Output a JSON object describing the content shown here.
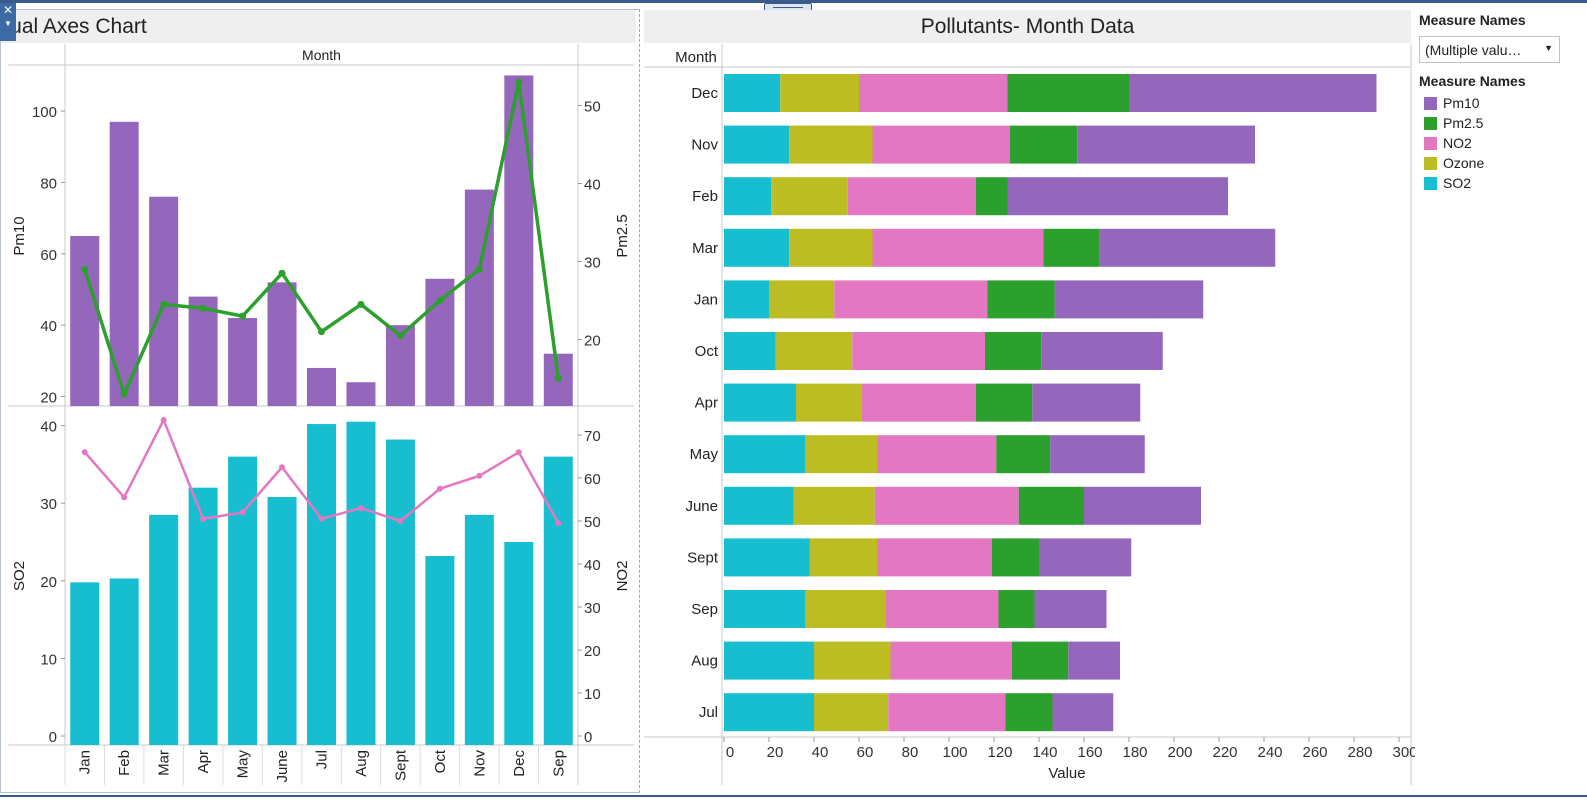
{
  "left_title": "Dual Axes Chart",
  "right_title": "Pollutants- Month Data",
  "colors": {
    "pm10": "#9467bd",
    "pm25": "#2ca02c",
    "no2": "#e377c2",
    "ozone": "#bcbd22",
    "so2": "#17becf"
  },
  "legend": {
    "filter_title": "Measure Names",
    "filter_value": "(Multiple valu…",
    "title": "Measure Names",
    "items": [
      {
        "label": "Pm10",
        "color": "#9467bd"
      },
      {
        "label": "Pm2.5",
        "color": "#2ca02c"
      },
      {
        "label": "NO2",
        "color": "#e377c2"
      },
      {
        "label": "Ozone",
        "color": "#bcbd22"
      },
      {
        "label": "SO2",
        "color": "#17becf"
      }
    ]
  },
  "chart_data": [
    {
      "type": "bar+line",
      "title": "Dual Axes Chart",
      "header": "Month",
      "categories": [
        "Jan",
        "Feb",
        "Mar",
        "Apr",
        "May",
        "June",
        "Jul",
        "Aug",
        "Sept",
        "Oct",
        "Nov",
        "Dec",
        "Sep"
      ],
      "top": {
        "bar": {
          "name": "Pm10",
          "axis_label": "Pm10",
          "ticks": [
            20,
            40,
            60,
            80,
            100
          ],
          "values": [
            65,
            97,
            76,
            48,
            42,
            52,
            28,
            24,
            40,
            53,
            78,
            110,
            32
          ]
        },
        "line": {
          "name": "Pm2.5",
          "axis_label": "Pm2.5",
          "ticks": [
            20,
            30,
            40,
            50
          ],
          "values": [
            29,
            13,
            24.5,
            24,
            23,
            28.5,
            21,
            24.5,
            20.5,
            25,
            29,
            53,
            15
          ]
        }
      },
      "bottom": {
        "bar": {
          "name": "SO2",
          "axis_label": "SO2",
          "ticks": [
            0,
            10,
            20,
            30,
            40
          ],
          "values": [
            19.8,
            20.3,
            28.5,
            32,
            36,
            30.8,
            40.2,
            40.5,
            38.2,
            23.2,
            28.5,
            25,
            36
          ]
        },
        "line": {
          "name": "NO2",
          "axis_label": "NO2",
          "ticks": [
            0,
            10,
            20,
            30,
            40,
            50,
            60,
            70
          ],
          "values": [
            66,
            55.5,
            73.5,
            50.5,
            52,
            62.5,
            50.5,
            53,
            50,
            57.5,
            60.5,
            66,
            49.5
          ]
        }
      }
    },
    {
      "type": "stacked-bar-horizontal",
      "title": "Pollutants- Month Data",
      "ylabel": "Month",
      "xlabel": "Value",
      "xticks": [
        0,
        20,
        40,
        60,
        80,
        100,
        120,
        140,
        160,
        180,
        200,
        220,
        240,
        260,
        280,
        300
      ],
      "categories": [
        "Dec",
        "Nov",
        "Feb",
        "Mar",
        "Jan",
        "Oct",
        "Apr",
        "May",
        "June",
        "Sept",
        "Sep",
        "Aug",
        "Jul"
      ],
      "series": [
        {
          "name": "SO2",
          "values": [
            25,
            29,
            21,
            29,
            20,
            23,
            32,
            36,
            31,
            38,
            36,
            40,
            40
          ]
        },
        {
          "name": "Ozone",
          "values": [
            35,
            37,
            34,
            37,
            29,
            34,
            29,
            32,
            36,
            30,
            36,
            34,
            33
          ]
        },
        {
          "name": "NO2",
          "values": [
            66,
            61,
            57,
            76,
            68,
            59,
            51,
            53,
            64,
            51,
            50,
            54,
            52
          ]
        },
        {
          "name": "Pm2.5",
          "values": [
            54,
            30,
            14,
            25,
            30,
            25,
            25,
            24,
            29,
            21,
            16,
            25,
            21
          ]
        },
        {
          "name": "Pm10",
          "values": [
            110,
            79,
            98,
            78,
            66,
            54,
            48,
            42,
            52,
            41,
            32,
            23,
            27
          ]
        }
      ]
    }
  ]
}
